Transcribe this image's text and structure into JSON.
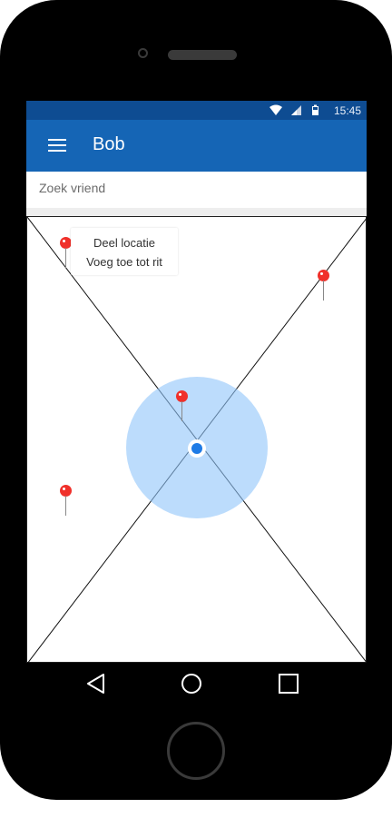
{
  "status_bar": {
    "time": "15:45",
    "icons": [
      "wifi-icon",
      "signal-icon",
      "battery-icon"
    ]
  },
  "app_bar": {
    "menu_icon": "hamburger-menu-icon",
    "title": "Bob"
  },
  "search": {
    "placeholder": "Zoek vriend",
    "value": ""
  },
  "map": {
    "pin_icon": "map-pin-icon",
    "pin_color": "#f0302a",
    "accuracy_color": "#90c4fa",
    "location_color": "#1e7be6",
    "popup": {
      "items": [
        "Deel locatie",
        "Voeg toe tot rit"
      ]
    }
  },
  "nav_bar": {
    "buttons": [
      "back-triangle-icon",
      "home-circle-icon",
      "recents-square-icon"
    ]
  },
  "colors": {
    "status_bar": "#0e4c92",
    "app_bar": "#1565b5"
  }
}
